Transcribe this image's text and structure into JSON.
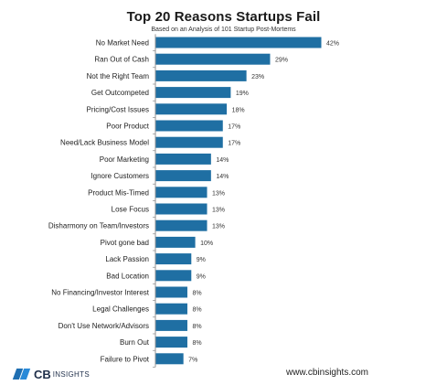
{
  "chart_data": {
    "type": "bar",
    "orientation": "horizontal",
    "title": "Top 20 Reasons Startups Fail",
    "subtitle": "Based on an Analysis of 101 Startup Post-Mortems",
    "categories": [
      "No Market Need",
      "Ran Out of Cash",
      "Not the Right Team",
      "Get Outcompeted",
      "Pricing/Cost Issues",
      "Poor Product",
      "Need/Lack Business Model",
      "Poor Marketing",
      "Ignore Customers",
      "Product Mis-Timed",
      "Lose Focus",
      "Disharmony on Team/Investors",
      "Pivot gone bad",
      "Lack Passion",
      "Bad Location",
      "No Financing/Investor Interest",
      "Legal Challenges",
      "Don't Use Network/Advisors",
      "Burn Out",
      "Failure to Pivot"
    ],
    "values": [
      42,
      29,
      23,
      19,
      18,
      17,
      17,
      14,
      14,
      13,
      13,
      13,
      10,
      9,
      9,
      8,
      8,
      8,
      8,
      7
    ],
    "value_labels": [
      "42%",
      "29%",
      "23%",
      "19%",
      "18%",
      "17%",
      "17%",
      "14%",
      "14%",
      "13%",
      "13%",
      "13%",
      "10%",
      "9%",
      "9%",
      "8%",
      "8%",
      "8%",
      "8%",
      "7%"
    ],
    "bar_color": "#1f6fa3",
    "grid": false,
    "xlim": [
      0,
      42
    ]
  },
  "footer": {
    "logo_bold": "CB",
    "logo_rest": "INSIGHTS",
    "url": "www.cbinsights.com"
  },
  "colors": {
    "bar": "#1f6fa3",
    "axis": "#7a7a7a",
    "logo_blue": "#2a8ad8"
  }
}
